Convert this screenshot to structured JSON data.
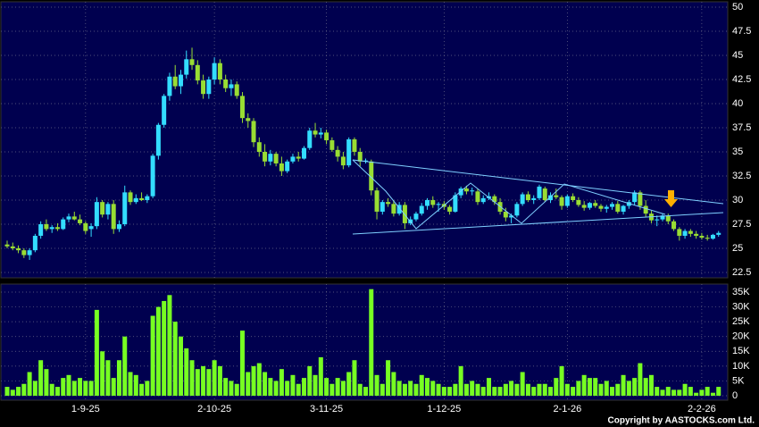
{
  "chart_data": {
    "type": "candlestick",
    "copyright": "Copyright by AASTOCKS.com Ltd.",
    "categories": [
      null,
      null,
      null,
      null,
      null,
      null,
      null,
      null,
      null,
      null,
      null,
      null,
      null,
      null,
      "1-9-25",
      null,
      null,
      null,
      null,
      null,
      null,
      null,
      null,
      null,
      null,
      null,
      null,
      null,
      null,
      null,
      null,
      null,
      null,
      null,
      null,
      null,
      null,
      "2-10-25",
      null,
      null,
      null,
      null,
      null,
      null,
      null,
      null,
      null,
      null,
      null,
      null,
      null,
      null,
      null,
      null,
      null,
      null,
      null,
      "3-11-25",
      null,
      null,
      null,
      null,
      null,
      null,
      null,
      null,
      null,
      null,
      null,
      null,
      null,
      null,
      null,
      null,
      null,
      null,
      null,
      null,
      "1-12-25",
      null,
      null,
      null,
      null,
      null,
      null,
      null,
      null,
      null,
      null,
      null,
      null,
      null,
      null,
      null,
      null,
      null,
      null,
      null,
      null,
      null,
      "2-1-26",
      null,
      null,
      null,
      null,
      null,
      null,
      null,
      null,
      null,
      null,
      null,
      null,
      null,
      null,
      null,
      null,
      null,
      null,
      null,
      null,
      null,
      null,
      null,
      "2-2-26",
      null,
      null,
      null
    ],
    "open": [
      25.4,
      25.2,
      25.0,
      24.8,
      24.3,
      24.8,
      26.3,
      27.5,
      27.0,
      27.2,
      27.0,
      28.0,
      28.3,
      28.0,
      27.6,
      27.0,
      27.3,
      29.8,
      28.5,
      29.6,
      27.0,
      27.5,
      30.8,
      29.8,
      30.2,
      30.0,
      30.4,
      34.6,
      37.8,
      40.8,
      42.8,
      41.8,
      43.0,
      44.6,
      44.0,
      42.4,
      41.0,
      42.5,
      44.2,
      42.5,
      41.6,
      42.0,
      40.8,
      38.5,
      38.2,
      36.0,
      35.0,
      34.0,
      34.8,
      33.8,
      33.0,
      34.0,
      34.5,
      34.3,
      35.4,
      37.2,
      36.8,
      37.0,
      36.2,
      35.2,
      34.5,
      33.6,
      36.3,
      35.0,
      34.0,
      34.0,
      31.0,
      28.8,
      29.8,
      29.6,
      28.6,
      29.5,
      27.6,
      28.0,
      28.6,
      29.4,
      30.0,
      29.5,
      29.6,
      29.3,
      28.8,
      30.5,
      31.2,
      30.9,
      30.9,
      29.8,
      30.2,
      30.4,
      29.8,
      28.8,
      28.2,
      28.4,
      29.6,
      30.6,
      30.0,
      30.2,
      31.2,
      30.0,
      30.5,
      30.3,
      29.4,
      30.4,
      30.0,
      29.5,
      29.2,
      29.7,
      29.4,
      29.1,
      29.3,
      29.6,
      28.8,
      29.4,
      29.8,
      30.8,
      29.4,
      28.6,
      27.9,
      28.0,
      28.4,
      27.8,
      27.0,
      26.3,
      26.8,
      26.5,
      26.3,
      26.1,
      26.0,
      26.4
    ],
    "high": [
      25.8,
      25.6,
      25.3,
      25.0,
      25.0,
      26.5,
      27.8,
      28.0,
      27.4,
      27.6,
      28.2,
      28.6,
      28.8,
      28.5,
      27.8,
      27.6,
      30.3,
      30.0,
      29.8,
      30.0,
      27.9,
      31.5,
      31.0,
      30.6,
      30.8,
      30.6,
      34.8,
      38.0,
      41.0,
      43.2,
      44.0,
      43.5,
      45.5,
      45.8,
      44.5,
      43.0,
      42.8,
      44.8,
      44.6,
      43.0,
      42.5,
      42.3,
      41.2,
      39.0,
      38.5,
      36.5,
      35.8,
      35.2,
      35.0,
      34.5,
      34.2,
      34.8,
      35.0,
      35.6,
      37.5,
      38.0,
      37.5,
      37.3,
      36.5,
      35.6,
      35.0,
      36.5,
      36.5,
      35.4,
      34.3,
      34.2,
      31.3,
      30.0,
      30.2,
      30.0,
      29.8,
      29.8,
      28.3,
      28.8,
      29.7,
      30.2,
      30.4,
      29.8,
      29.9,
      29.5,
      30.8,
      31.4,
      31.5,
      31.3,
      31.2,
      30.5,
      30.8,
      30.6,
      30.2,
      29.2,
      28.6,
      29.8,
      30.8,
      30.9,
      30.5,
      31.6,
      31.4,
      30.8,
      31.2,
      30.5,
      30.6,
      30.7,
      30.3,
      29.9,
      29.8,
      30.0,
      29.6,
      29.5,
      29.8,
      29.9,
      29.5,
      30.0,
      31.0,
      31.0,
      30.0,
      28.9,
      28.4,
      28.6,
      28.6,
      28.0,
      27.2,
      27.0,
      27.0,
      26.8,
      26.6,
      26.4,
      26.5,
      26.8
    ],
    "low": [
      25.0,
      24.8,
      24.5,
      24.0,
      23.8,
      24.6,
      26.0,
      26.8,
      26.6,
      26.8,
      26.9,
      27.7,
      27.9,
      27.4,
      26.5,
      26.2,
      27.0,
      28.2,
      28.0,
      26.5,
      26.7,
      27.3,
      29.5,
      29.6,
      29.9,
      29.7,
      30.2,
      34.2,
      37.5,
      40.3,
      41.5,
      41.0,
      42.6,
      43.5,
      42.0,
      40.5,
      40.5,
      42.0,
      42.0,
      41.2,
      40.8,
      40.5,
      38.0,
      37.5,
      35.5,
      34.5,
      33.5,
      33.6,
      33.5,
      32.5,
      32.8,
      33.8,
      34.0,
      34.2,
      35.2,
      36.5,
      36.4,
      35.8,
      35.0,
      34.0,
      33.2,
      33.4,
      34.6,
      33.5,
      33.8,
      30.5,
      28.0,
      28.5,
      29.3,
      28.3,
      28.4,
      27.0,
      27.4,
      27.8,
      28.4,
      29.0,
      29.2,
      28.8,
      29.0,
      28.5,
      28.7,
      30.2,
      30.6,
      30.5,
      29.5,
      29.6,
      30.0,
      29.5,
      28.5,
      27.8,
      27.6,
      28.2,
      29.4,
      29.8,
      29.6,
      30.0,
      29.8,
      29.7,
      30.1,
      29.0,
      29.2,
      29.8,
      29.3,
      28.9,
      29.0,
      29.2,
      28.8,
      28.7,
      29.0,
      28.6,
      28.5,
      29.1,
      29.5,
      29.0,
      28.2,
      27.6,
      27.3,
      27.8,
      27.5,
      26.8,
      25.8,
      26.0,
      26.2,
      26.0,
      25.9,
      25.8,
      25.9,
      26.2
    ],
    "close": [
      25.2,
      25.0,
      24.8,
      24.3,
      24.8,
      26.3,
      27.5,
      27.0,
      27.2,
      27.0,
      28.0,
      28.3,
      28.0,
      27.6,
      26.8,
      27.3,
      29.8,
      28.5,
      29.6,
      27.0,
      27.5,
      30.8,
      29.8,
      30.2,
      30.0,
      30.4,
      34.6,
      37.8,
      40.8,
      42.8,
      41.8,
      43.0,
      44.6,
      44.0,
      42.4,
      41.0,
      42.5,
      44.2,
      42.5,
      41.6,
      42.0,
      40.8,
      38.5,
      38.2,
      36.0,
      35.0,
      34.0,
      34.8,
      33.8,
      33.0,
      34.0,
      34.5,
      34.3,
      35.4,
      37.2,
      36.8,
      37.0,
      36.2,
      35.2,
      34.5,
      33.6,
      36.3,
      35.0,
      34.0,
      34.1,
      31.0,
      28.8,
      29.8,
      29.6,
      28.6,
      29.5,
      27.6,
      28.0,
      28.6,
      29.4,
      30.0,
      29.5,
      29.6,
      29.3,
      28.8,
      30.5,
      31.2,
      30.9,
      31.0,
      29.8,
      30.2,
      30.4,
      29.8,
      28.8,
      28.2,
      28.4,
      29.6,
      30.6,
      30.0,
      30.2,
      31.4,
      30.0,
      30.5,
      30.3,
      29.4,
      30.4,
      30.0,
      29.5,
      29.2,
      29.7,
      29.4,
      29.1,
      29.3,
      29.6,
      28.8,
      29.4,
      29.8,
      30.8,
      29.4,
      28.6,
      27.9,
      28.0,
      28.4,
      27.8,
      27.0,
      26.3,
      26.8,
      26.5,
      26.3,
      26.1,
      26.0,
      26.4,
      26.6
    ],
    "volume": [
      3000,
      2000,
      3000,
      4000,
      8000,
      5000,
      12000,
      9000,
      4000,
      3000,
      6000,
      7000,
      5000,
      6000,
      5000,
      5000,
      29000,
      15000,
      12000,
      6000,
      12000,
      20000,
      8000,
      7000,
      4000,
      5000,
      27000,
      30000,
      32000,
      34000,
      25000,
      20000,
      16000,
      12000,
      9000,
      10000,
      9000,
      12000,
      10000,
      6000,
      5000,
      4000,
      22000,
      8000,
      10000,
      11000,
      8000,
      6000,
      5000,
      9000,
      5000,
      7000,
      4000,
      6000,
      10000,
      7000,
      13000,
      6000,
      4000,
      6000,
      5000,
      8000,
      12000,
      4000,
      3000,
      36000,
      7000,
      4000,
      12000,
      8000,
      5000,
      4000,
      5000,
      4000,
      7000,
      6000,
      5000,
      4000,
      3000,
      3000,
      4000,
      10000,
      4000,
      5000,
      4000,
      3000,
      6000,
      3000,
      3000,
      4000,
      5000,
      4000,
      8000,
      4000,
      3000,
      4000,
      4000,
      3000,
      6000,
      10000,
      4000,
      3000,
      5000,
      7000,
      6000,
      6000,
      4000,
      5000,
      3000,
      4000,
      7000,
      5000,
      6000,
      11000,
      6000,
      7000,
      3000,
      2000,
      3000,
      2000,
      2000,
      4000,
      3000,
      1000,
      2000,
      3000,
      1000,
      3000
    ],
    "up_color": "#33ddff",
    "down_color": "#99dd33",
    "volume_color": "#77ff22",
    "ylim": [
      22.5,
      50
    ],
    "yticks": [
      22.5,
      25,
      27.5,
      30,
      32.5,
      35,
      37.5,
      40,
      42.5,
      45,
      47.5,
      50
    ],
    "volume_ylim": [
      0,
      37000
    ],
    "volume_yticks": [
      {
        "value": 0,
        "label": "0"
      },
      {
        "value": 5000,
        "label": "5K"
      },
      {
        "value": 10000,
        "label": "10K"
      },
      {
        "value": 15000,
        "label": "15K"
      },
      {
        "value": 20000,
        "label": "20K"
      },
      {
        "value": 25000,
        "label": "25K"
      },
      {
        "value": 30000,
        "label": "30K"
      },
      {
        "value": 35000,
        "label": "35K"
      }
    ],
    "grid": true
  }
}
